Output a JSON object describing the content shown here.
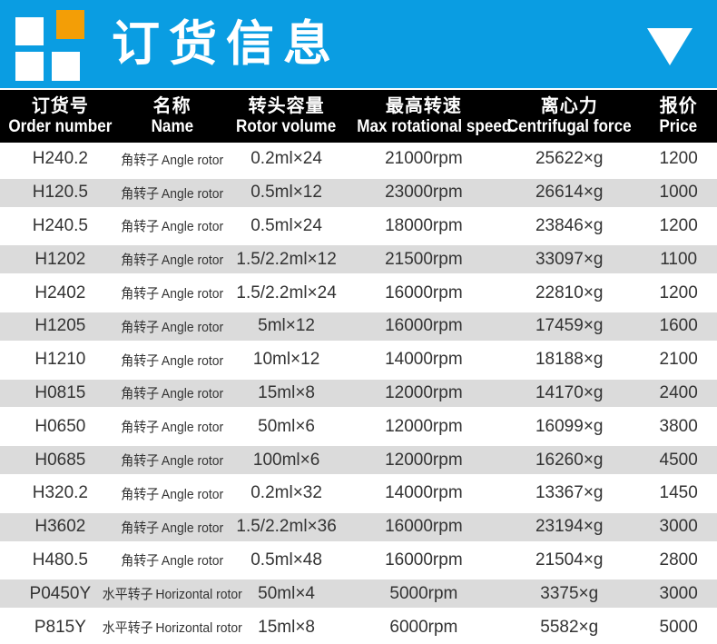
{
  "colors": {
    "accent_blue": "#0A9DE2",
    "accent_orange": "#F39E06",
    "header_bg": "#000000",
    "stripe_gray": "#DBDBDB",
    "text_dark": "#333333"
  },
  "header": {
    "title": "订货信息",
    "logo_icon": "four-squares-logo",
    "collapse_icon": "triangle-down"
  },
  "table": {
    "columns": [
      {
        "cn": "订货号",
        "en": "Order number"
      },
      {
        "cn": "名称",
        "en": "Name"
      },
      {
        "cn": "转头容量",
        "en": "Rotor volume"
      },
      {
        "cn": "最高转速",
        "en": "Max rotational speed"
      },
      {
        "cn": "离心力",
        "en": "Centrifugal force"
      },
      {
        "cn": "报价",
        "en": "Price"
      }
    ],
    "rows": [
      {
        "order": "H240.2",
        "name_cn": "角转子",
        "name_en": "Angle rotor",
        "volume": "0.2ml×24",
        "speed": "21000rpm",
        "force": "25622×g",
        "price": "1200"
      },
      {
        "order": "H120.5",
        "name_cn": "角转子",
        "name_en": "Angle rotor",
        "volume": "0.5ml×12",
        "speed": "23000rpm",
        "force": "26614×g",
        "price": "1000"
      },
      {
        "order": "H240.5",
        "name_cn": "角转子",
        "name_en": "Angle rotor",
        "volume": "0.5ml×24",
        "speed": "18000rpm",
        "force": "23846×g",
        "price": "1200"
      },
      {
        "order": "H1202",
        "name_cn": "角转子",
        "name_en": "Angle rotor",
        "volume": "1.5/2.2ml×12",
        "speed": "21500rpm",
        "force": "33097×g",
        "price": "1100"
      },
      {
        "order": "H2402",
        "name_cn": "角转子",
        "name_en": "Angle rotor",
        "volume": "1.5/2.2ml×24",
        "speed": "16000rpm",
        "force": "22810×g",
        "price": "1200"
      },
      {
        "order": "H1205",
        "name_cn": "角转子",
        "name_en": "Angle rotor",
        "volume": "5ml×12",
        "speed": "16000rpm",
        "force": "17459×g",
        "price": "1600"
      },
      {
        "order": "H1210",
        "name_cn": "角转子",
        "name_en": "Angle rotor",
        "volume": "10ml×12",
        "speed": "14000rpm",
        "force": "18188×g",
        "price": "2100"
      },
      {
        "order": "H0815",
        "name_cn": "角转子",
        "name_en": "Angle rotor",
        "volume": "15ml×8",
        "speed": "12000rpm",
        "force": "14170×g",
        "price": "2400"
      },
      {
        "order": "H0650",
        "name_cn": "角转子",
        "name_en": "Angle rotor",
        "volume": "50ml×6",
        "speed": "12000rpm",
        "force": "16099×g",
        "price": "3800"
      },
      {
        "order": "H0685",
        "name_cn": "角转子",
        "name_en": "Angle rotor",
        "volume": "100ml×6",
        "speed": "12000rpm",
        "force": "16260×g",
        "price": "4500"
      },
      {
        "order": "H320.2",
        "name_cn": "角转子",
        "name_en": "Angle rotor",
        "volume": "0.2ml×32",
        "speed": "14000rpm",
        "force": "13367×g",
        "price": "1450"
      },
      {
        "order": "H3602",
        "name_cn": "角转子",
        "name_en": "Angle rotor",
        "volume": "1.5/2.2ml×36",
        "speed": "16000rpm",
        "force": "23194×g",
        "price": "3000"
      },
      {
        "order": "H480.5",
        "name_cn": "角转子",
        "name_en": "Angle rotor",
        "volume": "0.5ml×48",
        "speed": "16000rpm",
        "force": "21504×g",
        "price": "2800"
      },
      {
        "order": "P0450Y",
        "name_cn": "水平转子",
        "name_en": "Horizontal rotor",
        "volume": "50ml×4",
        "speed": "5000rpm",
        "force": "3375×g",
        "price": "3000"
      },
      {
        "order": "P815Y",
        "name_cn": "水平转子",
        "name_en": "Horizontal rotor",
        "volume": "15ml×8",
        "speed": "6000rpm",
        "force": "5582×g",
        "price": "5000"
      }
    ]
  }
}
